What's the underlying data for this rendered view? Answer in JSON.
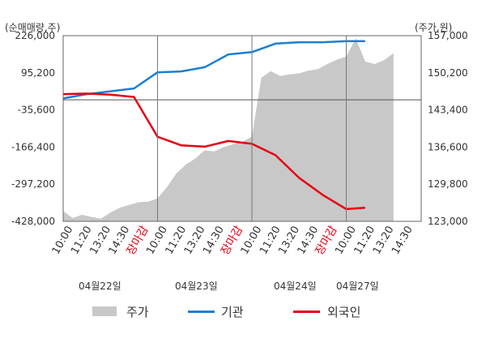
{
  "chart_data": {
    "type": "line",
    "left_unit": "(순매매량,주)",
    "right_unit": "(주가,원)",
    "left_ticks": [
      "226,000",
      "95,200",
      "-35,600",
      "-166,400",
      "-297,200",
      "-428,000"
    ],
    "right_ticks": [
      "157,000",
      "150,200",
      "143,400",
      "136,600",
      "129,800",
      "123,000"
    ],
    "ylim_left": [
      -428000,
      226000
    ],
    "ylim_right": [
      123000,
      157000
    ],
    "x_ticks": [
      "10:00",
      "11:20",
      "13:20",
      "14:30",
      "장마감",
      "10:00",
      "11:20",
      "13:20",
      "14:30",
      "장마감",
      "10:00",
      "11:20",
      "13:20",
      "14:30",
      "장마감",
      "10:00",
      "11:20",
      "13:20",
      "14:30"
    ],
    "close_label": "장마감",
    "dates": [
      "04월22일",
      "04월23일",
      "04월24일",
      "04월27일"
    ],
    "series": [
      {
        "name": "주가",
        "kind": "area",
        "color": "#c8c8c8",
        "x": [
          0.0,
          0.1,
          0.2,
          0.3,
          0.4,
          0.5,
          0.6,
          0.7,
          0.8,
          0.9,
          1.0,
          1.1,
          1.2,
          1.3,
          1.4,
          1.5,
          1.6,
          1.7,
          1.8,
          1.9,
          2.0,
          2.1,
          2.2,
          2.3,
          2.4,
          2.5,
          2.6,
          2.7,
          2.8,
          2.9,
          3.0,
          3.1,
          3.2,
          3.3,
          3.4,
          3.5
        ],
        "values": [
          124900,
          123600,
          124200,
          123800,
          123500,
          124600,
          125500,
          126000,
          126500,
          126600,
          127200,
          129300,
          131800,
          133400,
          134500,
          136000,
          135800,
          136600,
          137100,
          137600,
          138500,
          149300,
          150500,
          149600,
          149900,
          150100,
          150600,
          150900,
          151800,
          152600,
          153200,
          156500,
          152300,
          151800,
          152500,
          153800
        ]
      },
      {
        "name": "기관",
        "kind": "line",
        "color": "#1a7fd4",
        "x": [
          0.0,
          0.25,
          0.5,
          0.75,
          1.0,
          1.25,
          1.5,
          1.75,
          2.0,
          2.25,
          2.5,
          2.75,
          3.0,
          3.2
        ],
        "values": [
          5000,
          20000,
          30000,
          40000,
          97000,
          100000,
          115000,
          160000,
          168000,
          198000,
          203000,
          203000,
          207000,
          207000
        ]
      },
      {
        "name": "외국인",
        "kind": "line",
        "color": "#e60012",
        "x": [
          0.0,
          0.25,
          0.5,
          0.75,
          1.0,
          1.25,
          1.5,
          1.75,
          2.0,
          2.25,
          2.5,
          2.75,
          3.0,
          3.2
        ],
        "values": [
          20000,
          22000,
          18000,
          10000,
          -130000,
          -160000,
          -165000,
          -145000,
          -155000,
          -195000,
          -275000,
          -335000,
          -385000,
          -380000
        ]
      }
    ],
    "grid": false,
    "legend_position": "bottom"
  }
}
